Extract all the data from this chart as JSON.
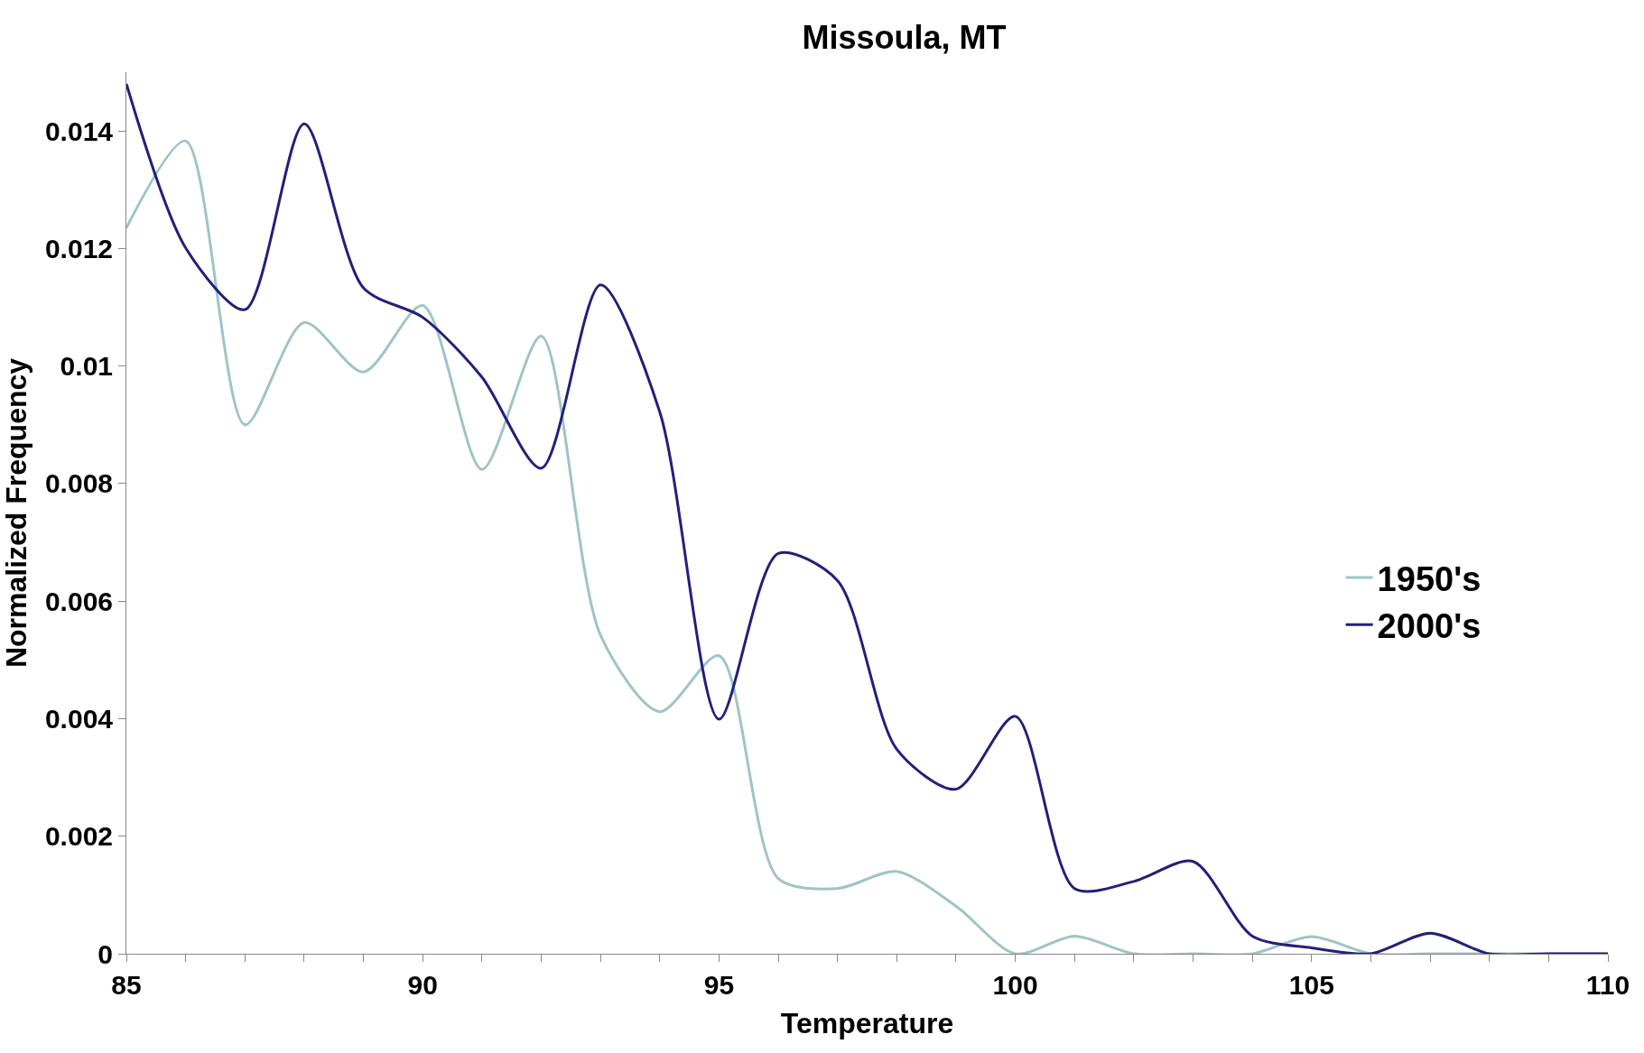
{
  "chart_data": {
    "type": "line",
    "title": "Missoula, MT",
    "xlabel": "Temperature",
    "ylabel": "Normalized Frequency",
    "x": [
      85,
      86,
      87,
      88,
      89,
      90,
      91,
      92,
      93,
      94,
      95,
      96,
      97,
      98,
      99,
      100,
      101,
      102,
      103,
      104,
      105,
      106,
      107,
      108,
      109,
      110
    ],
    "series": [
      {
        "name": "1950's",
        "color": "#9fc4c6",
        "values": [
          0.01235,
          0.01383,
          0.009,
          0.01074,
          0.0099,
          0.01103,
          0.00824,
          0.01051,
          0.00542,
          0.00412,
          0.00507,
          0.00128,
          0.00111,
          0.0014,
          0.00081,
          0,
          0.0003,
          0,
          0,
          0,
          0.00029,
          0,
          0,
          0,
          0,
          0
        ]
      },
      {
        "name": "2000's",
        "color": "#22207a",
        "values": [
          0.0148,
          0.01201,
          0.01096,
          0.01412,
          0.01133,
          0.01083,
          0.00981,
          0.00826,
          0.01138,
          0.00922,
          0.00399,
          0.00681,
          0.00635,
          0.00348,
          0.0028,
          0.00404,
          0.00111,
          0.00123,
          0.00157,
          0.0003,
          0.0001,
          0,
          0.00035,
          0,
          0,
          0
        ]
      }
    ],
    "xlim": [
      85,
      110
    ],
    "xticks": [
      85,
      {
        "value": 86,
        "label": null
      },
      {
        "value": 87,
        "label": null
      },
      {
        "value": 88,
        "label": null
      },
      {
        "value": 89,
        "label": null
      },
      90,
      {
        "value": 91,
        "label": null
      },
      {
        "value": 92,
        "label": null
      },
      {
        "value": 93,
        "label": null
      },
      {
        "value": 94,
        "label": null
      },
      95,
      {
        "value": 96,
        "label": null
      },
      {
        "value": 97,
        "label": null
      },
      {
        "value": 98,
        "label": null
      },
      {
        "value": 99,
        "label": null
      },
      100,
      {
        "value": 101,
        "label": null
      },
      {
        "value": 102,
        "label": null
      },
      {
        "value": 103,
        "label": null
      },
      {
        "value": 104,
        "label": null
      },
      105,
      {
        "value": 106,
        "label": null
      },
      {
        "value": 107,
        "label": null
      },
      {
        "value": 108,
        "label": null
      },
      {
        "value": 109,
        "label": null
      },
      110
    ],
    "ylim": [
      0,
      0.015
    ],
    "yticks": [
      0,
      0.002,
      0.004,
      0.006,
      0.008,
      0.01,
      0.012,
      0.014
    ],
    "legend": "right",
    "marker": "none",
    "line_style": "solid"
  }
}
